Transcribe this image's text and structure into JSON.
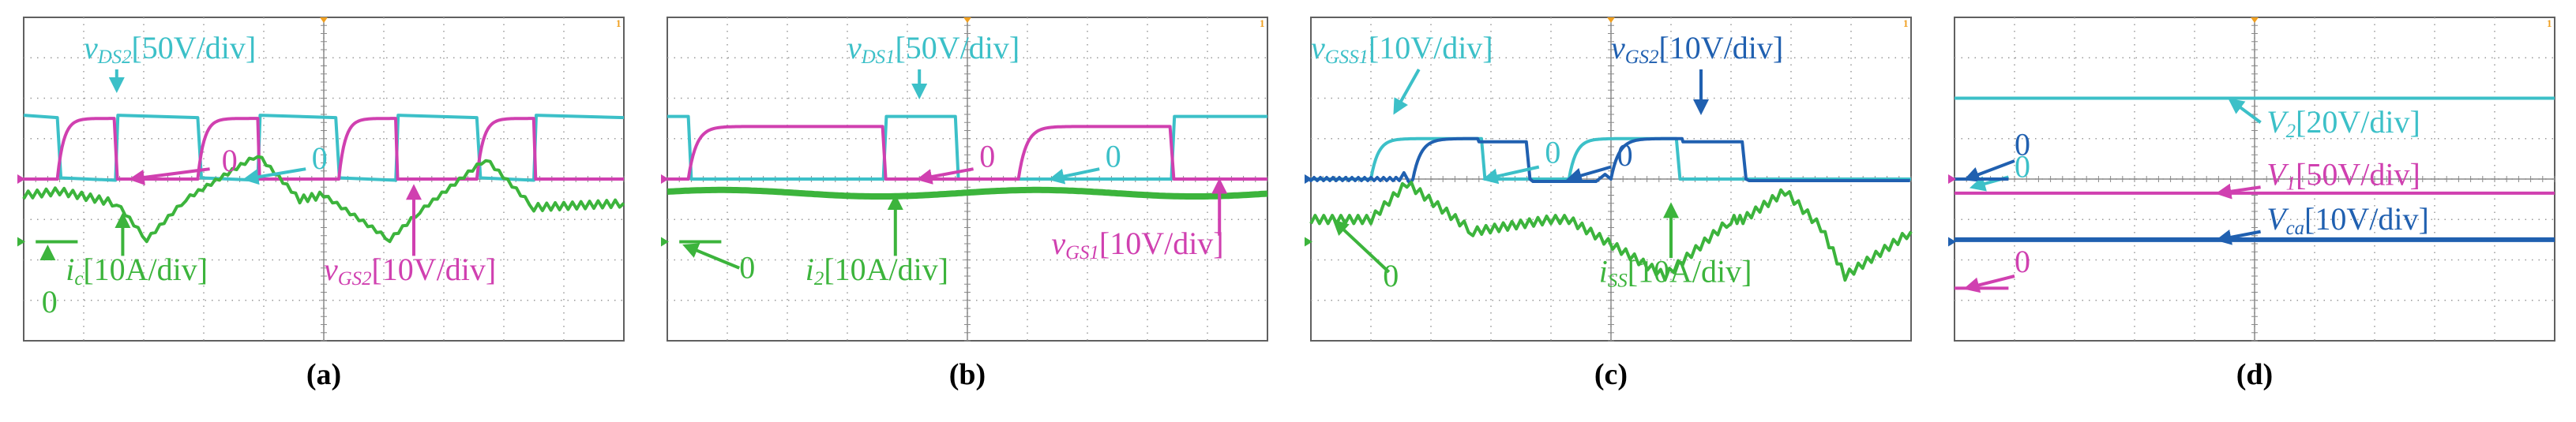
{
  "figure": {
    "panels": [
      {
        "id": "a",
        "caption": "(a)",
        "markers": [
          {
            "text": "1",
            "color": "#f0a020"
          }
        ],
        "labels": [
          {
            "text": "vDS2[50V/div]",
            "color": "#3cc0c8"
          },
          {
            "text": "ic[10A/div]",
            "color": "#3cb43c"
          },
          {
            "text": "vGS2[10V/div]",
            "color": "#d040b0"
          }
        ],
        "zero_labels": [
          {
            "text": "0",
            "color": "#d040b0"
          },
          {
            "text": "0",
            "color": "#3cc0c8"
          },
          {
            "text": "0",
            "color": "#3cb43c"
          }
        ]
      },
      {
        "id": "b",
        "caption": "(b)",
        "markers": [
          {
            "text": "1",
            "color": "#f0a020"
          }
        ],
        "labels": [
          {
            "text": "vDS1[50V/div]",
            "color": "#3cc0c8"
          },
          {
            "text": "i2[10A/div]",
            "color": "#3cb43c"
          },
          {
            "text": "vGS1[10V/div]",
            "color": "#d040b0"
          }
        ],
        "zero_labels": [
          {
            "text": "0",
            "color": "#d040b0"
          },
          {
            "text": "0",
            "color": "#3cc0c8"
          },
          {
            "text": "0",
            "color": "#3cb43c"
          }
        ]
      },
      {
        "id": "c",
        "caption": "(c)",
        "markers": [
          {
            "text": "1",
            "color": "#f0a020"
          }
        ],
        "labels": [
          {
            "text": "vGSS1[10V/div]",
            "color": "#3cc0c8"
          },
          {
            "text": "vGS2[10V/div]",
            "color": "#2060b0"
          },
          {
            "text": "iSS[10A/div]",
            "color": "#3cb43c"
          }
        ],
        "zero_labels": [
          {
            "text": "0",
            "color": "#3cc0c8"
          },
          {
            "text": "0",
            "color": "#2060b0"
          },
          {
            "text": "0",
            "color": "#3cb43c"
          }
        ]
      },
      {
        "id": "d",
        "caption": "(d)",
        "markers": [
          {
            "text": "1",
            "color": "#f0a020"
          }
        ],
        "labels": [
          {
            "text": "V2[20V/div]",
            "color": "#3cc0c8"
          },
          {
            "text": "V1[50V/div]",
            "color": "#d040b0"
          },
          {
            "text": "Vca[10V/div]",
            "color": "#2060b0"
          }
        ],
        "zero_labels": [
          {
            "text": "0",
            "color": "#2060b0"
          },
          {
            "text": "0",
            "color": "#3cc0c8"
          },
          {
            "text": "0",
            "color": "#d040b0"
          }
        ]
      }
    ]
  },
  "chart_data": [
    {
      "type": "line",
      "panel": "a",
      "grid": true,
      "grid_divisions": {
        "x": 10,
        "y": 8
      },
      "series": [
        {
          "name": "vDS2[50V/div]",
          "color": "#3cc0c8",
          "waveform": "square_high_low",
          "y_high_div": 1.5,
          "y_low_div": 0.0
        },
        {
          "name": "vGS2[10V/div]",
          "color": "#d040b0",
          "waveform": "square_low_high",
          "y_high_div": 1.5,
          "y_low_div": 0.0
        },
        {
          "name": "ic[10A/div]",
          "color": "#3cb43c",
          "waveform": "triangle_with_ripple",
          "y_min_div": -1.5,
          "y_max_div": 1.0
        }
      ]
    },
    {
      "type": "line",
      "panel": "b",
      "grid": true,
      "grid_divisions": {
        "x": 10,
        "y": 8
      },
      "series": [
        {
          "name": "vDS1[50V/div]",
          "color": "#3cc0c8",
          "waveform": "square",
          "y_high_div": 1.0,
          "y_low_div": 0.0
        },
        {
          "name": "vGS1[10V/div]",
          "color": "#d040b0",
          "waveform": "square",
          "y_high_div": 1.0,
          "y_low_div": 0.0
        },
        {
          "name": "i2[10A/div]",
          "color": "#3cb43c",
          "waveform": "slow_sine",
          "y_level_div": -0.3
        }
      ]
    },
    {
      "type": "line",
      "panel": "c",
      "grid": true,
      "grid_divisions": {
        "x": 10,
        "y": 8
      },
      "series": [
        {
          "name": "vGSS1[10V/div]",
          "color": "#3cc0c8",
          "waveform": "pulse",
          "y_high_div": 1.0,
          "y_low_div": 0.0
        },
        {
          "name": "vGS2[10V/div]",
          "color": "#2060b0",
          "waveform": "pulse_delayed",
          "y_high_div": 1.0,
          "y_low_div": 0.0
        },
        {
          "name": "iSS[10A/div]",
          "color": "#3cb43c",
          "waveform": "triangle_with_ripple",
          "y_min_div": -2.5,
          "y_max_div": 0.5
        }
      ]
    },
    {
      "type": "line",
      "panel": "d",
      "grid": true,
      "grid_divisions": {
        "x": 10,
        "y": 8
      },
      "series": [
        {
          "name": "V2[20V/div]",
          "color": "#3cc0c8",
          "waveform": "dc",
          "y_level_div": 2.0
        },
        {
          "name": "V1[50V/div]",
          "color": "#d040b0",
          "waveform": "dc",
          "y_level_div": 0.0
        },
        {
          "name": "Vca[10V/div]",
          "color": "#2060b0",
          "waveform": "dc",
          "y_level_div": -1.5
        }
      ]
    }
  ]
}
